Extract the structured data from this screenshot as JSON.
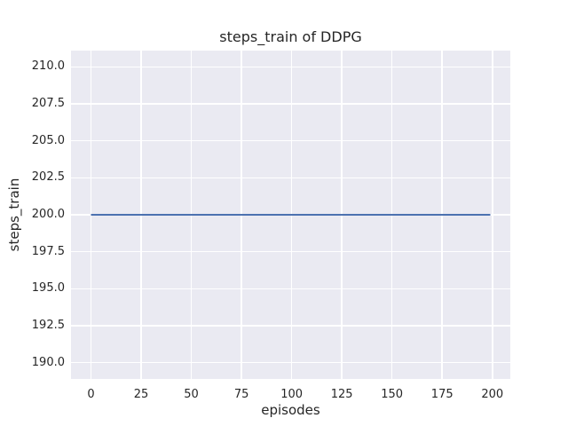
{
  "chart_data": {
    "type": "line",
    "title": "steps_train of DDPG",
    "xlabel": "episodes",
    "ylabel": "steps_train",
    "x_ticks": [
      0,
      25,
      50,
      75,
      100,
      125,
      150,
      175,
      200
    ],
    "x_tick_labels": [
      "0",
      "25",
      "50",
      "75",
      "100",
      "125",
      "150",
      "175",
      "200"
    ],
    "y_ticks": [
      190,
      192.5,
      195,
      197.5,
      200,
      202.5,
      205,
      207.5,
      210
    ],
    "y_tick_labels": [
      "190.0",
      "192.5",
      "195.0",
      "197.5",
      "200.0",
      "202.5",
      "205.0",
      "207.5",
      "210.0"
    ],
    "xlim": [
      -9.95,
      208.95
    ],
    "ylim": [
      188.9,
      211.1
    ],
    "grid": true,
    "legend": false,
    "series": [
      {
        "name": "steps_train",
        "x": [
          0,
          199
        ],
        "y": [
          200,
          200
        ],
        "color": "#4C72B0",
        "line_width": 2
      }
    ],
    "colors": {
      "line": "#4C72B0",
      "plot_background": "#EAEAF2",
      "gridline": "#FFFFFF",
      "figure_background": "#FFFFFF",
      "text": "#262626"
    }
  }
}
